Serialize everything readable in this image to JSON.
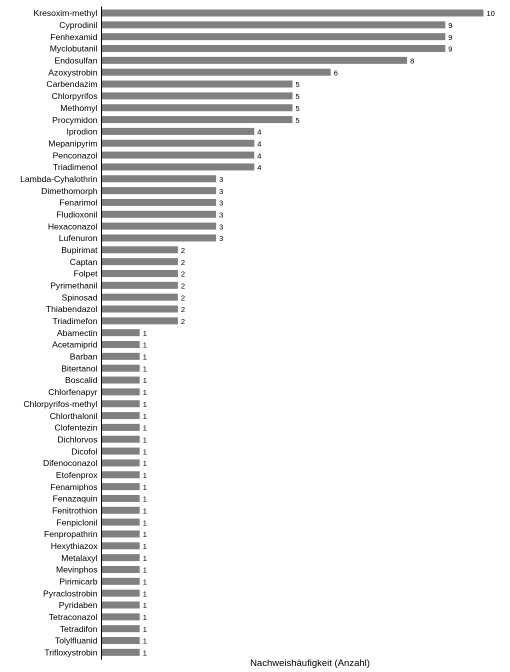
{
  "chart_data": {
    "type": "bar",
    "orientation": "horizontal",
    "title": "",
    "xlabel": "Nachweishäufigkeit (Anzahl)",
    "ylabel": "",
    "xlim": [
      0,
      10
    ],
    "grid": false,
    "legend": "none",
    "bar_color": "#808080",
    "categories": [
      "Kresoxim-methyl",
      "Cyprodinil",
      "Fenhexamid",
      "Myclobutanil",
      "Endosulfan",
      "Azoxystrobin",
      "Carbendazim",
      "Chlorpyrifos",
      "Methomyl",
      "Procymidon",
      "Iprodion",
      "Mepanipyrim",
      "Penconazol",
      "Triadimenol",
      "Lambda-Cyhalothrin",
      "Dimethomorph",
      "Fenarimol",
      "Fludioxonil",
      "Hexaconazol",
      "Lufenuron",
      "Bupirimat",
      "Captan",
      "Folpet",
      "Pyrimethanil",
      "Spinosad",
      "Thiabendazol",
      "Triadimefon",
      "Abamectin",
      "Acetamiprid",
      "Barban",
      "Bitertanol",
      "Boscalid",
      "Chlorfenapyr",
      "Chlorpyrifos-methyl",
      "Chlorthalonil",
      "Clofentezin",
      "Dichlorvos",
      "Dicofol",
      "Difenoconazol",
      "Etofenprox",
      "Fenamiphos",
      "Fenazaquin",
      "Fenitrothion",
      "Fenpiclonil",
      "Fenpropathrin",
      "Hexythiazox",
      "Metalaxyl",
      "Mevinphos",
      "Pirimicarb",
      "Pyraclostrobin",
      "Pyridaben",
      "Tetraconazol",
      "Tetradifon",
      "Tolylfluanid",
      "Trifloxystrobin"
    ],
    "values": [
      10,
      9,
      9,
      9,
      8,
      6,
      5,
      5,
      5,
      5,
      4,
      4,
      4,
      4,
      3,
      3,
      3,
      3,
      3,
      3,
      2,
      2,
      2,
      2,
      2,
      2,
      2,
      1,
      1,
      1,
      1,
      1,
      1,
      1,
      1,
      1,
      1,
      1,
      1,
      1,
      1,
      1,
      1,
      1,
      1,
      1,
      1,
      1,
      1,
      1,
      1,
      1,
      1,
      1,
      1
    ]
  }
}
